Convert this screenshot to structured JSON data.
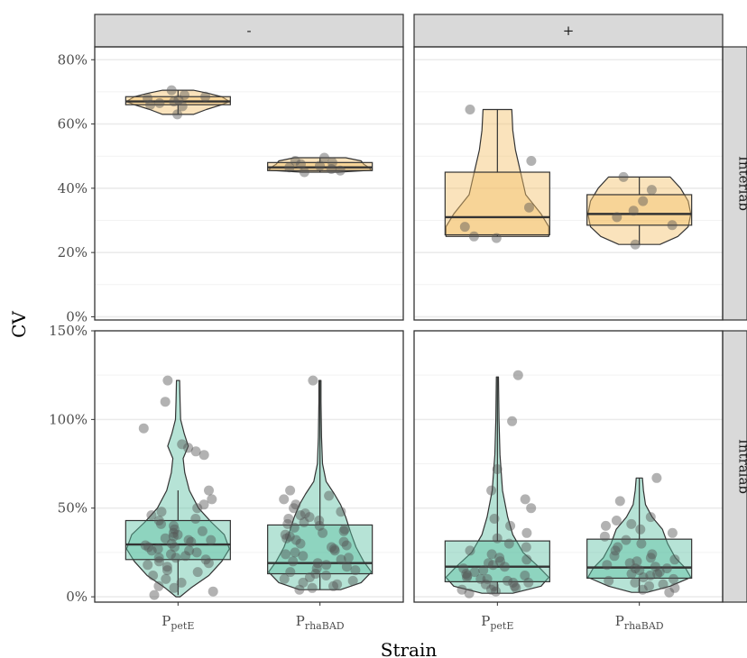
{
  "chart_data": {
    "type": "violin",
    "xlabel": "Strain",
    "ylabel": "CV",
    "categories": [
      {
        "main": "P",
        "sub": "petE"
      },
      {
        "main": "P",
        "sub": "rhaBAD"
      }
    ],
    "col_facets": [
      "-",
      "+"
    ],
    "row_facets": [
      {
        "label": "Interlab",
        "ylim": [
          -1,
          84
        ],
        "ticks": [
          0,
          20,
          40,
          60,
          80
        ],
        "tick_labels": [
          "0%",
          "20%",
          "40%",
          "60%",
          "80%"
        ],
        "fill": "#f3c26a"
      },
      {
        "label": "Intralab",
        "ylim": [
          -3,
          150
        ],
        "ticks": [
          0,
          50,
          100,
          150
        ],
        "tick_labels": [
          "0%",
          "50%",
          "100%",
          "150%"
        ],
        "fill": "#5ec2a3"
      }
    ],
    "grid": true,
    "legend": "none",
    "panels": [
      {
        "row": "Interlab",
        "col": "-",
        "groups": [
          {
            "category": "petE",
            "box": {
              "q1": 66,
              "median": 67,
              "q3": 68.5,
              "min": 63,
              "max": 70.5
            },
            "violin": [
              [
                63,
                0.3
              ],
              [
                64.5,
                0.55
              ],
              [
                66,
                0.85
              ],
              [
                67,
                1.0
              ],
              [
                68.5,
                0.85
              ],
              [
                69.5,
                0.6
              ],
              [
                70.5,
                0.3
              ]
            ],
            "points": [
              63,
              65.5,
              66,
              66.5,
              67,
              67.5,
              68,
              68.5,
              69,
              70.5
            ]
          },
          {
            "category": "rhaBAD",
            "box": {
              "q1": 45.5,
              "median": 46.5,
              "q3": 48,
              "min": 45,
              "max": 49.5
            },
            "violin": [
              [
                45,
                0.35
              ],
              [
                45.6,
                1.0
              ],
              [
                46.5,
                0.95
              ],
              [
                47.5,
                0.85
              ],
              [
                48.5,
                0.8
              ],
              [
                49.5,
                0.5
              ]
            ],
            "points": [
              45,
              45.5,
              46,
              46.5,
              47,
              47.5,
              48,
              48.5,
              49.5
            ]
          }
        ]
      },
      {
        "row": "Interlab",
        "col": "+",
        "groups": [
          {
            "category": "petE",
            "box": {
              "q1": 25.5,
              "median": 31,
              "q3": 45,
              "min": 25,
              "max": 64.5
            },
            "violin": [
              [
                25,
                1.0
              ],
              [
                28,
                1.0
              ],
              [
                32,
                0.85
              ],
              [
                38,
                0.55
              ],
              [
                45,
                0.45
              ],
              [
                52,
                0.35
              ],
              [
                58,
                0.3
              ],
              [
                64.5,
                0.28
              ]
            ],
            "points": [
              24.5,
              25,
              28,
              34,
              48.5,
              64.5
            ]
          },
          {
            "category": "rhaBAD",
            "box": {
              "q1": 28.5,
              "median": 32,
              "q3": 38,
              "min": 22.5,
              "max": 43.5
            },
            "violin": [
              [
                22.5,
                0.4
              ],
              [
                25,
                0.75
              ],
              [
                28,
                0.95
              ],
              [
                32,
                1.0
              ],
              [
                36,
                0.95
              ],
              [
                40,
                0.8
              ],
              [
                43.5,
                0.6
              ]
            ],
            "points": [
              22.5,
              28.5,
              31,
              33,
              36,
              39.5,
              43.5
            ]
          }
        ]
      },
      {
        "row": "Intralab",
        "col": "-",
        "groups": [
          {
            "category": "petE",
            "box": {
              "q1": 21,
              "median": 29.5,
              "q3": 43,
              "min": 1,
              "max": 60
            },
            "violin": [
              [
                0,
                0.04
              ],
              [
                5,
                0.25
              ],
              [
                12,
                0.6
              ],
              [
                20,
                0.85
              ],
              [
                27,
                1.0
              ],
              [
                35,
                0.9
              ],
              [
                42,
                0.65
              ],
              [
                50,
                0.4
              ],
              [
                60,
                0.22
              ],
              [
                70,
                0.13
              ],
              [
                78,
                0.1
              ],
              [
                85,
                0.2
              ],
              [
                92,
                0.12
              ],
              [
                100,
                0.05
              ],
              [
                110,
                0.04
              ],
              [
                122,
                0.03
              ]
            ],
            "points": [
              1,
              3,
              5,
              6,
              8,
              10,
              12,
              14,
              15,
              17,
              18,
              19,
              20,
              21,
              22,
              22,
              23,
              24,
              25,
              26,
              26,
              27,
              28,
              28,
              29,
              30,
              31,
              32,
              32,
              33,
              34,
              35,
              36,
              37,
              38,
              40,
              41,
              43,
              44,
              46,
              48,
              50,
              52,
              55,
              60,
              80,
              82,
              84,
              86,
              95,
              110,
              122
            ]
          },
          {
            "category": "rhaBAD",
            "box": {
              "q1": 13,
              "median": 19,
              "q3": 40.5,
              "min": 4,
              "max": 122
            },
            "violin": [
              [
                4,
                0.4
              ],
              [
                8,
                0.8
              ],
              [
                14,
                1.0
              ],
              [
                20,
                0.85
              ],
              [
                28,
                0.7
              ],
              [
                36,
                0.6
              ],
              [
                45,
                0.5
              ],
              [
                52,
                0.4
              ],
              [
                58,
                0.28
              ],
              [
                65,
                0.12
              ],
              [
                75,
                0.05
              ],
              [
                90,
                0.03
              ],
              [
                110,
                0.02
              ],
              [
                122,
                0.02
              ]
            ],
            "points": [
              4,
              5,
              6,
              7,
              8,
              9,
              10,
              11,
              12,
              13,
              14,
              15,
              16,
              17,
              18,
              19,
              20,
              21,
              22,
              23,
              24,
              25,
              26,
              27,
              28,
              29,
              30,
              31,
              32,
              33,
              34,
              35,
              36,
              37,
              38,
              39,
              40,
              41,
              42,
              43,
              44,
              45,
              46,
              47,
              48,
              50,
              52,
              55,
              57,
              60,
              122
            ]
          }
        ]
      },
      {
        "row": "Intralab",
        "col": "+",
        "groups": [
          {
            "category": "petE",
            "box": {
              "q1": 8.5,
              "median": 17,
              "q3": 31.5,
              "min": 2,
              "max": 124
            },
            "violin": [
              [
                2,
                0.3
              ],
              [
                6,
                0.85
              ],
              [
                11,
                1.0
              ],
              [
                17,
                0.8
              ],
              [
                25,
                0.5
              ],
              [
                35,
                0.3
              ],
              [
                45,
                0.2
              ],
              [
                60,
                0.1
              ],
              [
                80,
                0.05
              ],
              [
                100,
                0.03
              ],
              [
                124,
                0.02
              ]
            ],
            "points": [
              2,
              3,
              4,
              4,
              5,
              6,
              6,
              7,
              8,
              8,
              9,
              10,
              10,
              11,
              12,
              12,
              13,
              14,
              15,
              16,
              17,
              18,
              19,
              20,
              21,
              22,
              24,
              26,
              28,
              30,
              33,
              36,
              40,
              44,
              50,
              55,
              60,
              72,
              99,
              125
            ]
          },
          {
            "category": "rhaBAD",
            "box": {
              "q1": 10.5,
              "median": 16.5,
              "q3": 32.5,
              "min": 2.5,
              "max": 67
            },
            "violin": [
              [
                2.5,
                0.15
              ],
              [
                6,
                0.6
              ],
              [
                11,
                1.0
              ],
              [
                16,
                0.9
              ],
              [
                22,
                0.7
              ],
              [
                30,
                0.55
              ],
              [
                38,
                0.45
              ],
              [
                45,
                0.25
              ],
              [
                52,
                0.12
              ],
              [
                60,
                0.08
              ],
              [
                67,
                0.06
              ]
            ],
            "points": [
              2.5,
              4,
              5,
              6,
              7,
              8,
              9,
              10,
              11,
              12,
              13,
              13,
              14,
              15,
              16,
              16,
              17,
              18,
              19,
              20,
              21,
              22,
              23,
              24,
              26,
              28,
              30,
              32,
              34,
              36,
              38,
              40,
              41,
              43,
              45,
              54,
              67
            ]
          }
        ]
      }
    ]
  }
}
